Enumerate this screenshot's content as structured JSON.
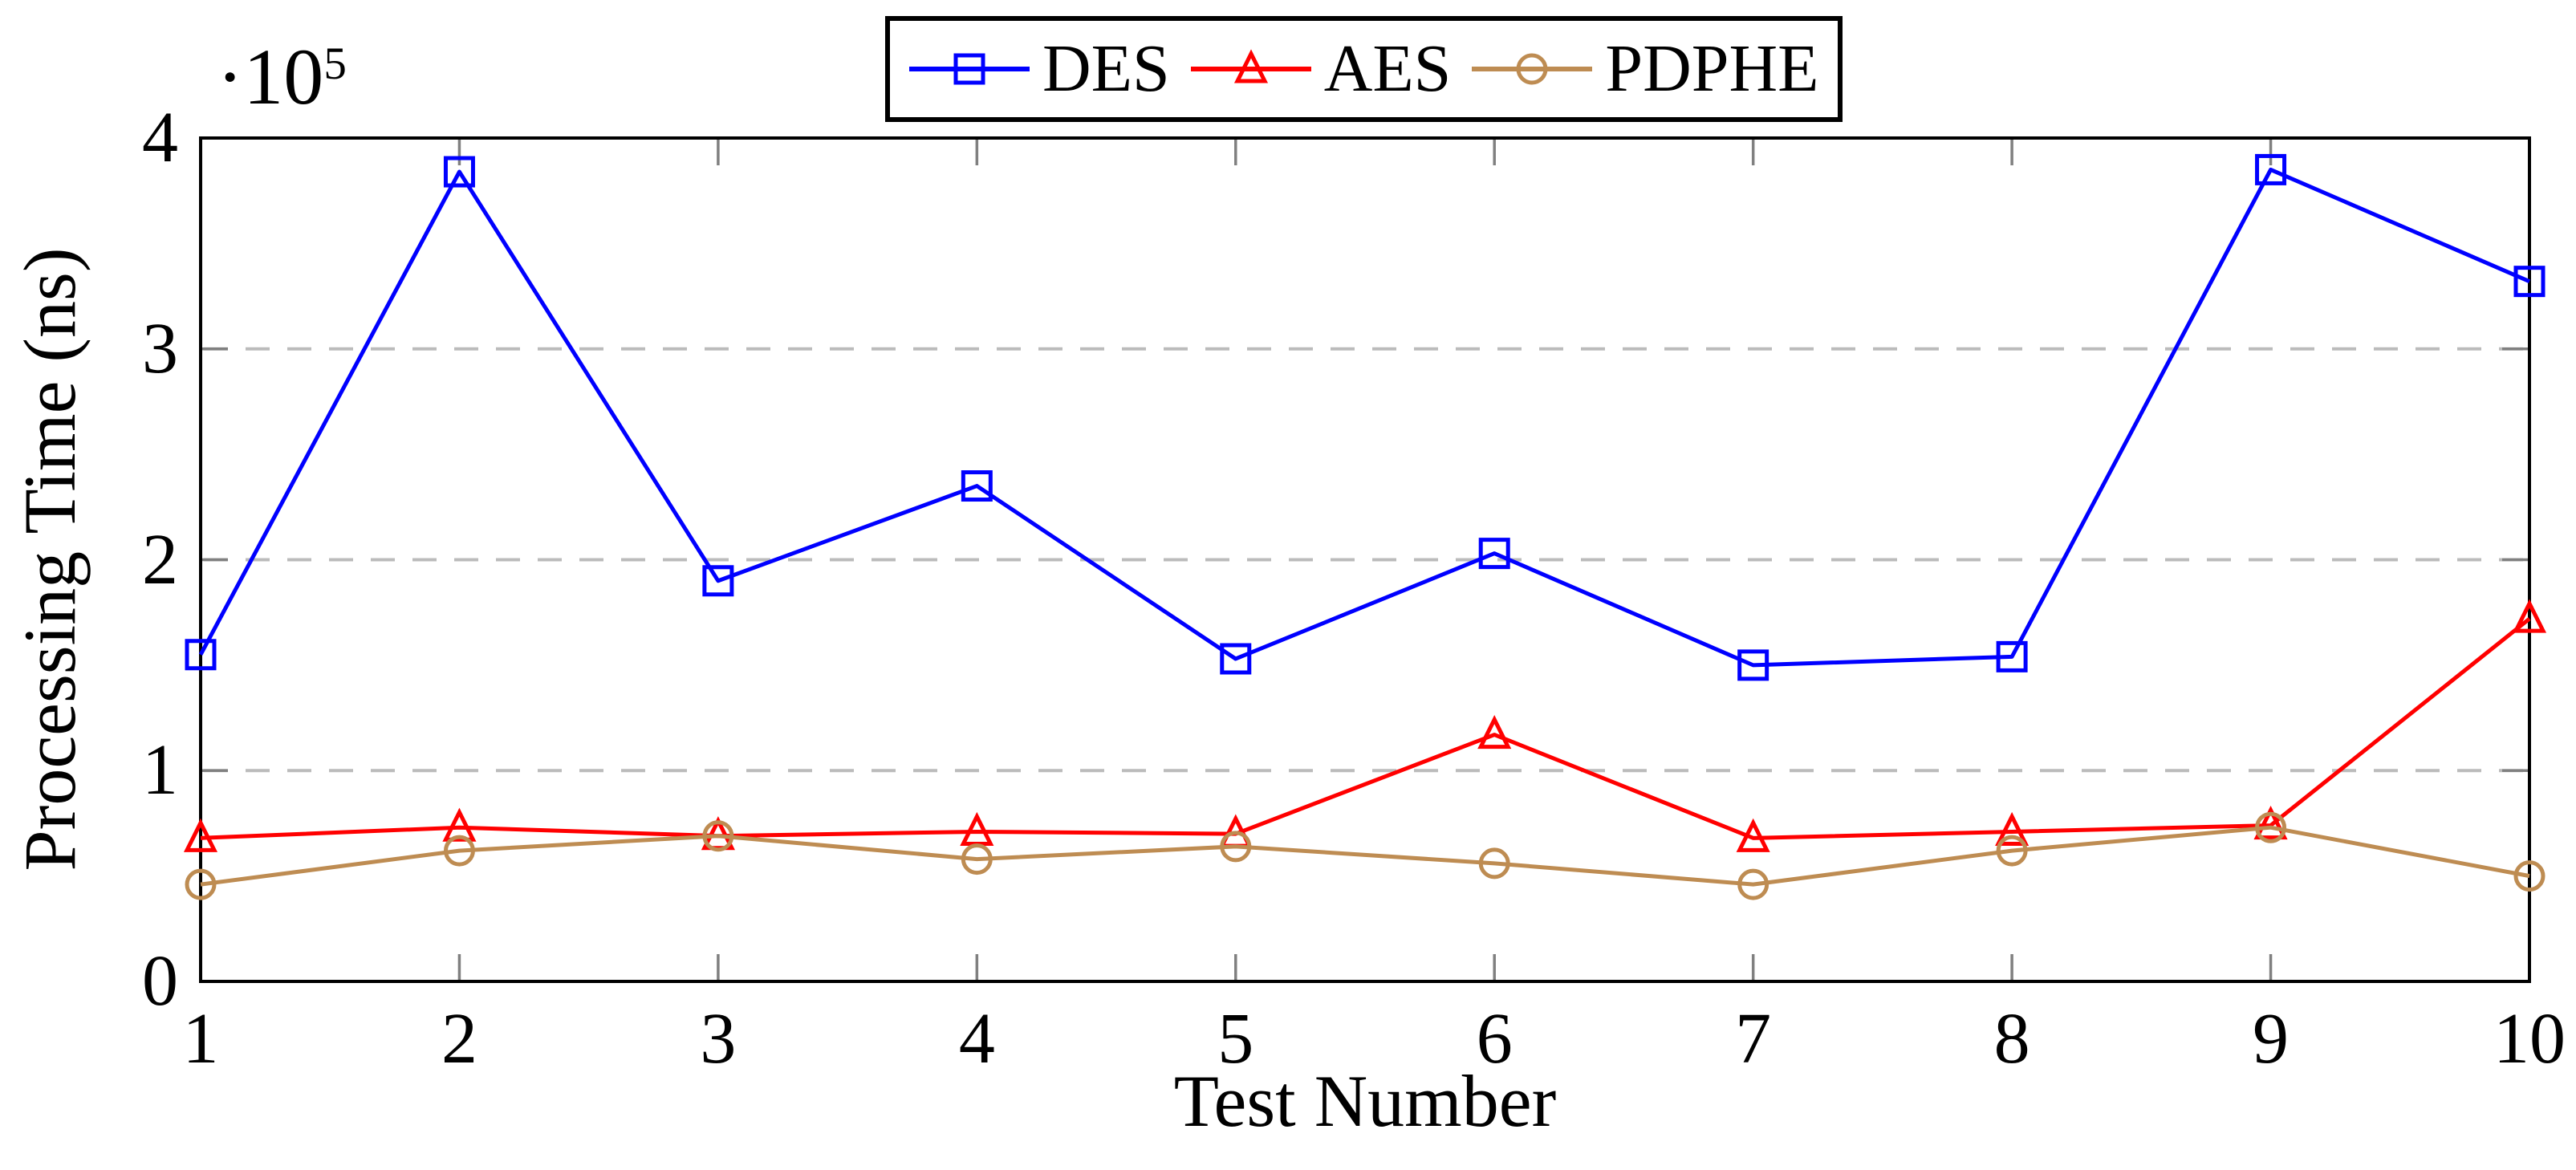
{
  "chart_data": {
    "type": "line",
    "title": "",
    "xlabel": "Test Number",
    "ylabel": "Processing Time (ns)",
    "y_scale_label": {
      "prefix": "·10",
      "sup": "5"
    },
    "x": [
      1,
      2,
      3,
      4,
      5,
      6,
      7,
      8,
      9,
      10
    ],
    "xtick_labels": [
      "1",
      "2",
      "3",
      "4",
      "5",
      "6",
      "7",
      "8",
      "9",
      "10"
    ],
    "ytick_values": [
      0,
      100000,
      200000,
      300000,
      400000
    ],
    "ytick_labels": [
      "0",
      "1",
      "2",
      "3",
      "4"
    ],
    "xlim": [
      1,
      10
    ],
    "ylim": [
      0,
      400000
    ],
    "grid": {
      "horizontal_dashed_at": [
        100000,
        200000,
        300000
      ],
      "style": "dashed"
    },
    "legend_position": "top-center",
    "colors": {
      "axis_frame": "#000000",
      "tick": "#808080",
      "gridline": "#BBBBBB",
      "background": "#FFFFFF"
    },
    "series": [
      {
        "name": "DES",
        "color": "#0000FF",
        "marker": "square",
        "values": [
          155000,
          384000,
          190000,
          235000,
          153000,
          203000,
          150000,
          154000,
          385000,
          332000
        ]
      },
      {
        "name": "AES",
        "color": "#FF0000",
        "marker": "triangle",
        "values": [
          68000,
          73000,
          69000,
          71000,
          70000,
          117000,
          68000,
          71000,
          74000,
          172000
        ]
      },
      {
        "name": "PDPHE",
        "color": "#BE8C52",
        "marker": "circle",
        "values": [
          46000,
          62000,
          69000,
          58000,
          64000,
          56000,
          46000,
          62000,
          73000,
          50000
        ]
      }
    ]
  }
}
